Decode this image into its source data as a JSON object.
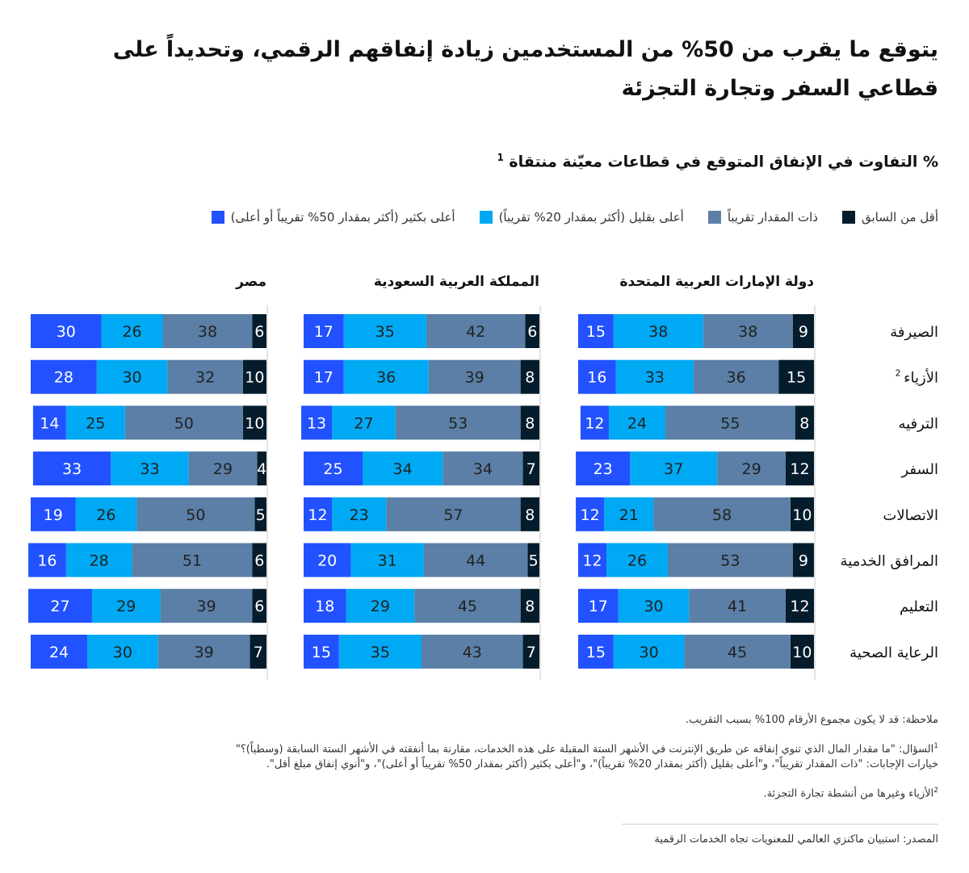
{
  "title": "يتوقع ما يقرب من 50% من المستخدمين زيادة إنفاقهم الرقمي، وتحديداً على قطاعي السفر وتجارة التجزئة",
  "subtitle": "% التفاوت في الإنفاق المتوقع في قطاعات معيّنة منتقاة",
  "subtitle_note": "1",
  "legend": [
    {
      "label": "أقل من السابق",
      "color": "#051c2c"
    },
    {
      "label": "ذات المقدار تقريباً",
      "color": "#5b7fa6"
    },
    {
      "label": "أعلى بقليل (أكثر بمقدار 20% تقريباً)",
      "color": "#00a9f4"
    },
    {
      "label": "أعلى بكثير (أكثر بمقدار 50% تقريباً أو أعلى)",
      "color": "#2251ff"
    }
  ],
  "notes": {
    "n0": "ملاحظة: قد لا يكون مجموع الأرقام 100% بسبب التقريب.",
    "n1_mark": "1",
    "n1a": "السؤال: \"ما مقدار المال الذي تنوي إنفاقه عن طريق الإنترنت في الأشهر الستة المقبلة على هذه الخدمات، مقارنة بما أنفقته في الأشهر الستة السابقة (وسطياً)؟\"",
    "n1b": "خيارات الإجابات: \"ذات المقدار تقريباً\"، و\"أعلى بقليل (أكثر بمقدار 20% تقريباً)\"، و\"أعلى بكثير (أكثر بمقدار 50% تقريباً أو أعلى)\"، و\"أنوي إنفاق مبلغ أقل\".",
    "n2_mark": "2",
    "n2": "الأزياء وغيرها من أنشطة تجارة التجزئة.",
    "source": "المصدر: استبيان ماكنزي العالمي للمعنويات تجاه الخدمات الرقمية"
  },
  "chart_data": {
    "type": "bar",
    "stacked": true,
    "orientation": "horizontal",
    "categories": [
      "الصيرفة",
      "الأزياء",
      "الترفيه",
      "السفر",
      "الاتصالات",
      "المرافق الخدمية",
      "التعليم",
      "الرعاية الصحية"
    ],
    "category_notes": [
      "",
      "2",
      "",
      "",
      "",
      "",
      "",
      ""
    ],
    "panels": [
      {
        "name": "دولة الإمارات العربية المتحدة",
        "series": [
          {
            "name": "أقل من السابق",
            "values": [
              9,
              15,
              8,
              12,
              10,
              9,
              12,
              10
            ]
          },
          {
            "name": "ذات المقدار تقريباً",
            "values": [
              38,
              36,
              55,
              29,
              58,
              53,
              41,
              45
            ]
          },
          {
            "name": "أعلى بقليل (أكثر بمقدار 20% تقريباً)",
            "values": [
              38,
              33,
              24,
              37,
              21,
              26,
              30,
              30
            ]
          },
          {
            "name": "أعلى بكثير (أكثر بمقدار 50% تقريباً أو أعلى)",
            "values": [
              15,
              16,
              12,
              23,
              12,
              12,
              17,
              15
            ]
          }
        ]
      },
      {
        "name": "المملكة العربية السعودية",
        "series": [
          {
            "name": "أقل من السابق",
            "values": [
              6,
              8,
              8,
              7,
              8,
              5,
              8,
              7
            ]
          },
          {
            "name": "ذات المقدار تقريباً",
            "values": [
              42,
              39,
              53,
              34,
              57,
              44,
              45,
              43
            ]
          },
          {
            "name": "أعلى بقليل (أكثر بمقدار 20% تقريباً)",
            "values": [
              35,
              36,
              27,
              34,
              23,
              31,
              29,
              35
            ]
          },
          {
            "name": "أعلى بكثير (أكثر بمقدار 50% تقريباً أو أعلى)",
            "values": [
              17,
              17,
              13,
              25,
              12,
              20,
              18,
              15
            ]
          }
        ]
      },
      {
        "name": "مصر",
        "series": [
          {
            "name": "أقل من السابق",
            "values": [
              6,
              10,
              10,
              4,
              5,
              6,
              6,
              7
            ]
          },
          {
            "name": "ذات المقدار تقريباً",
            "values": [
              38,
              32,
              50,
              29,
              50,
              51,
              39,
              39
            ]
          },
          {
            "name": "أعلى بقليل (أكثر بمقدار 20% تقريباً)",
            "values": [
              26,
              30,
              25,
              33,
              26,
              28,
              29,
              30
            ]
          },
          {
            "name": "أعلى بكثير (أكثر بمقدار 50% تقريباً أو أعلى)",
            "values": [
              30,
              28,
              14,
              33,
              19,
              16,
              27,
              24
            ]
          }
        ]
      }
    ],
    "label_colors": [
      "#ffffff",
      "#222222",
      "#222222",
      "#ffffff"
    ]
  }
}
